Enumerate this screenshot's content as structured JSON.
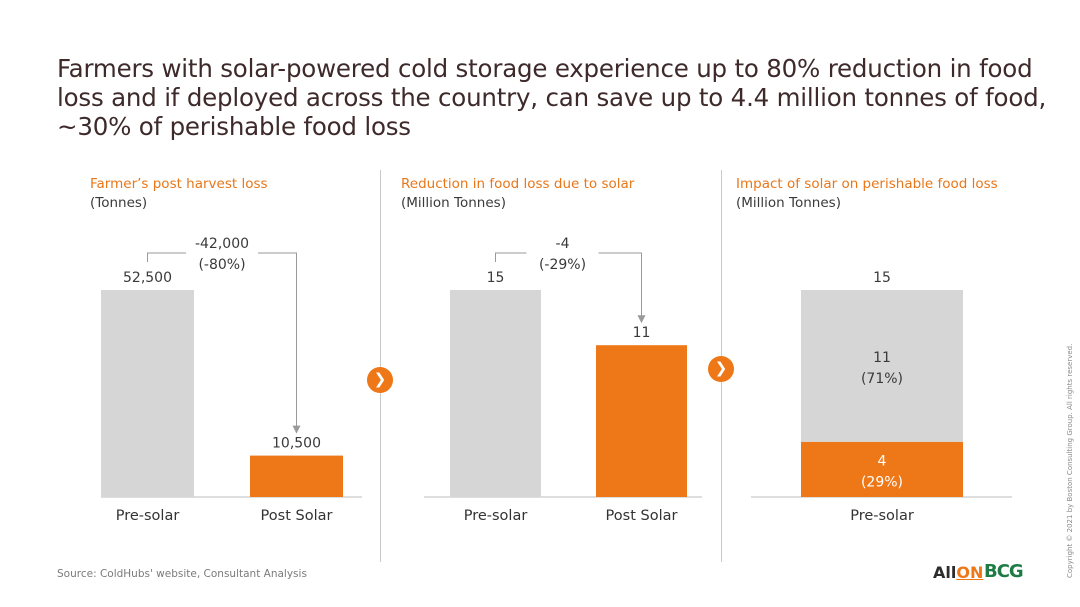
{
  "headline": "Farmers with solar-powered cold storage experience up to 80% reduction in food loss and if deployed across the country, can save up to 4.4 million tonnes of food, ~30% of perishable food loss",
  "source": "Source: ColdHubs' website, Consultant Analysis",
  "copyright": "Copyright © 2021 by Boston Consulting Group. All rights reserved.",
  "logos": {
    "allon_prefix": "All",
    "allon_suffix": "ON",
    "bcg": "BCG"
  },
  "colors": {
    "accent": "#ee7717",
    "gray_bar": "#d6d6d6",
    "axis": "#bdbdbd",
    "title_text": "#3e2a2a"
  },
  "icons": [
    "chevron-right-icon",
    "chevron-right-icon"
  ],
  "panels": [
    {
      "title": "Farmer’s post harvest loss",
      "unit": "(Tonnes)"
    },
    {
      "title": "Reduction in food loss due to solar",
      "unit": "(Million Tonnes)"
    },
    {
      "title": "Impact of solar on perishable food loss",
      "unit": "(Million Tonnes)"
    }
  ],
  "chart_data": [
    {
      "type": "bar",
      "title": "Farmer’s post harvest loss",
      "ylabel": "(Tonnes)",
      "categories": [
        "Pre-solar",
        "Post Solar"
      ],
      "values": [
        52500,
        10500
      ],
      "value_labels": [
        "52,500",
        "10,500"
      ],
      "colors": [
        "#d6d6d6",
        "#ee7717"
      ],
      "ylim": [
        0,
        52500
      ],
      "change": {
        "label": "-42,000",
        "pct": "(-80%)"
      }
    },
    {
      "type": "bar",
      "title": "Reduction in food loss due to solar",
      "ylabel": "(Million Tonnes)",
      "categories": [
        "Pre-solar",
        "Post Solar"
      ],
      "values": [
        15,
        11
      ],
      "value_labels": [
        "15",
        "11"
      ],
      "colors": [
        "#d6d6d6",
        "#ee7717"
      ],
      "ylim": [
        0,
        15
      ],
      "change": {
        "label": "-4",
        "pct": "(-29%)"
      }
    },
    {
      "type": "bar",
      "title": "Impact of solar on perishable food loss",
      "ylabel": "(Million Tonnes)",
      "categories": [
        "Pre-solar"
      ],
      "total": 15,
      "total_label": "15",
      "ylim": [
        0,
        15
      ],
      "stack": [
        {
          "value": 4,
          "label": "4",
          "pct": "(29%)",
          "color": "#ee7717"
        },
        {
          "value": 11,
          "label": "11",
          "pct": "(71%)",
          "color": "#d6d6d6"
        }
      ]
    }
  ]
}
